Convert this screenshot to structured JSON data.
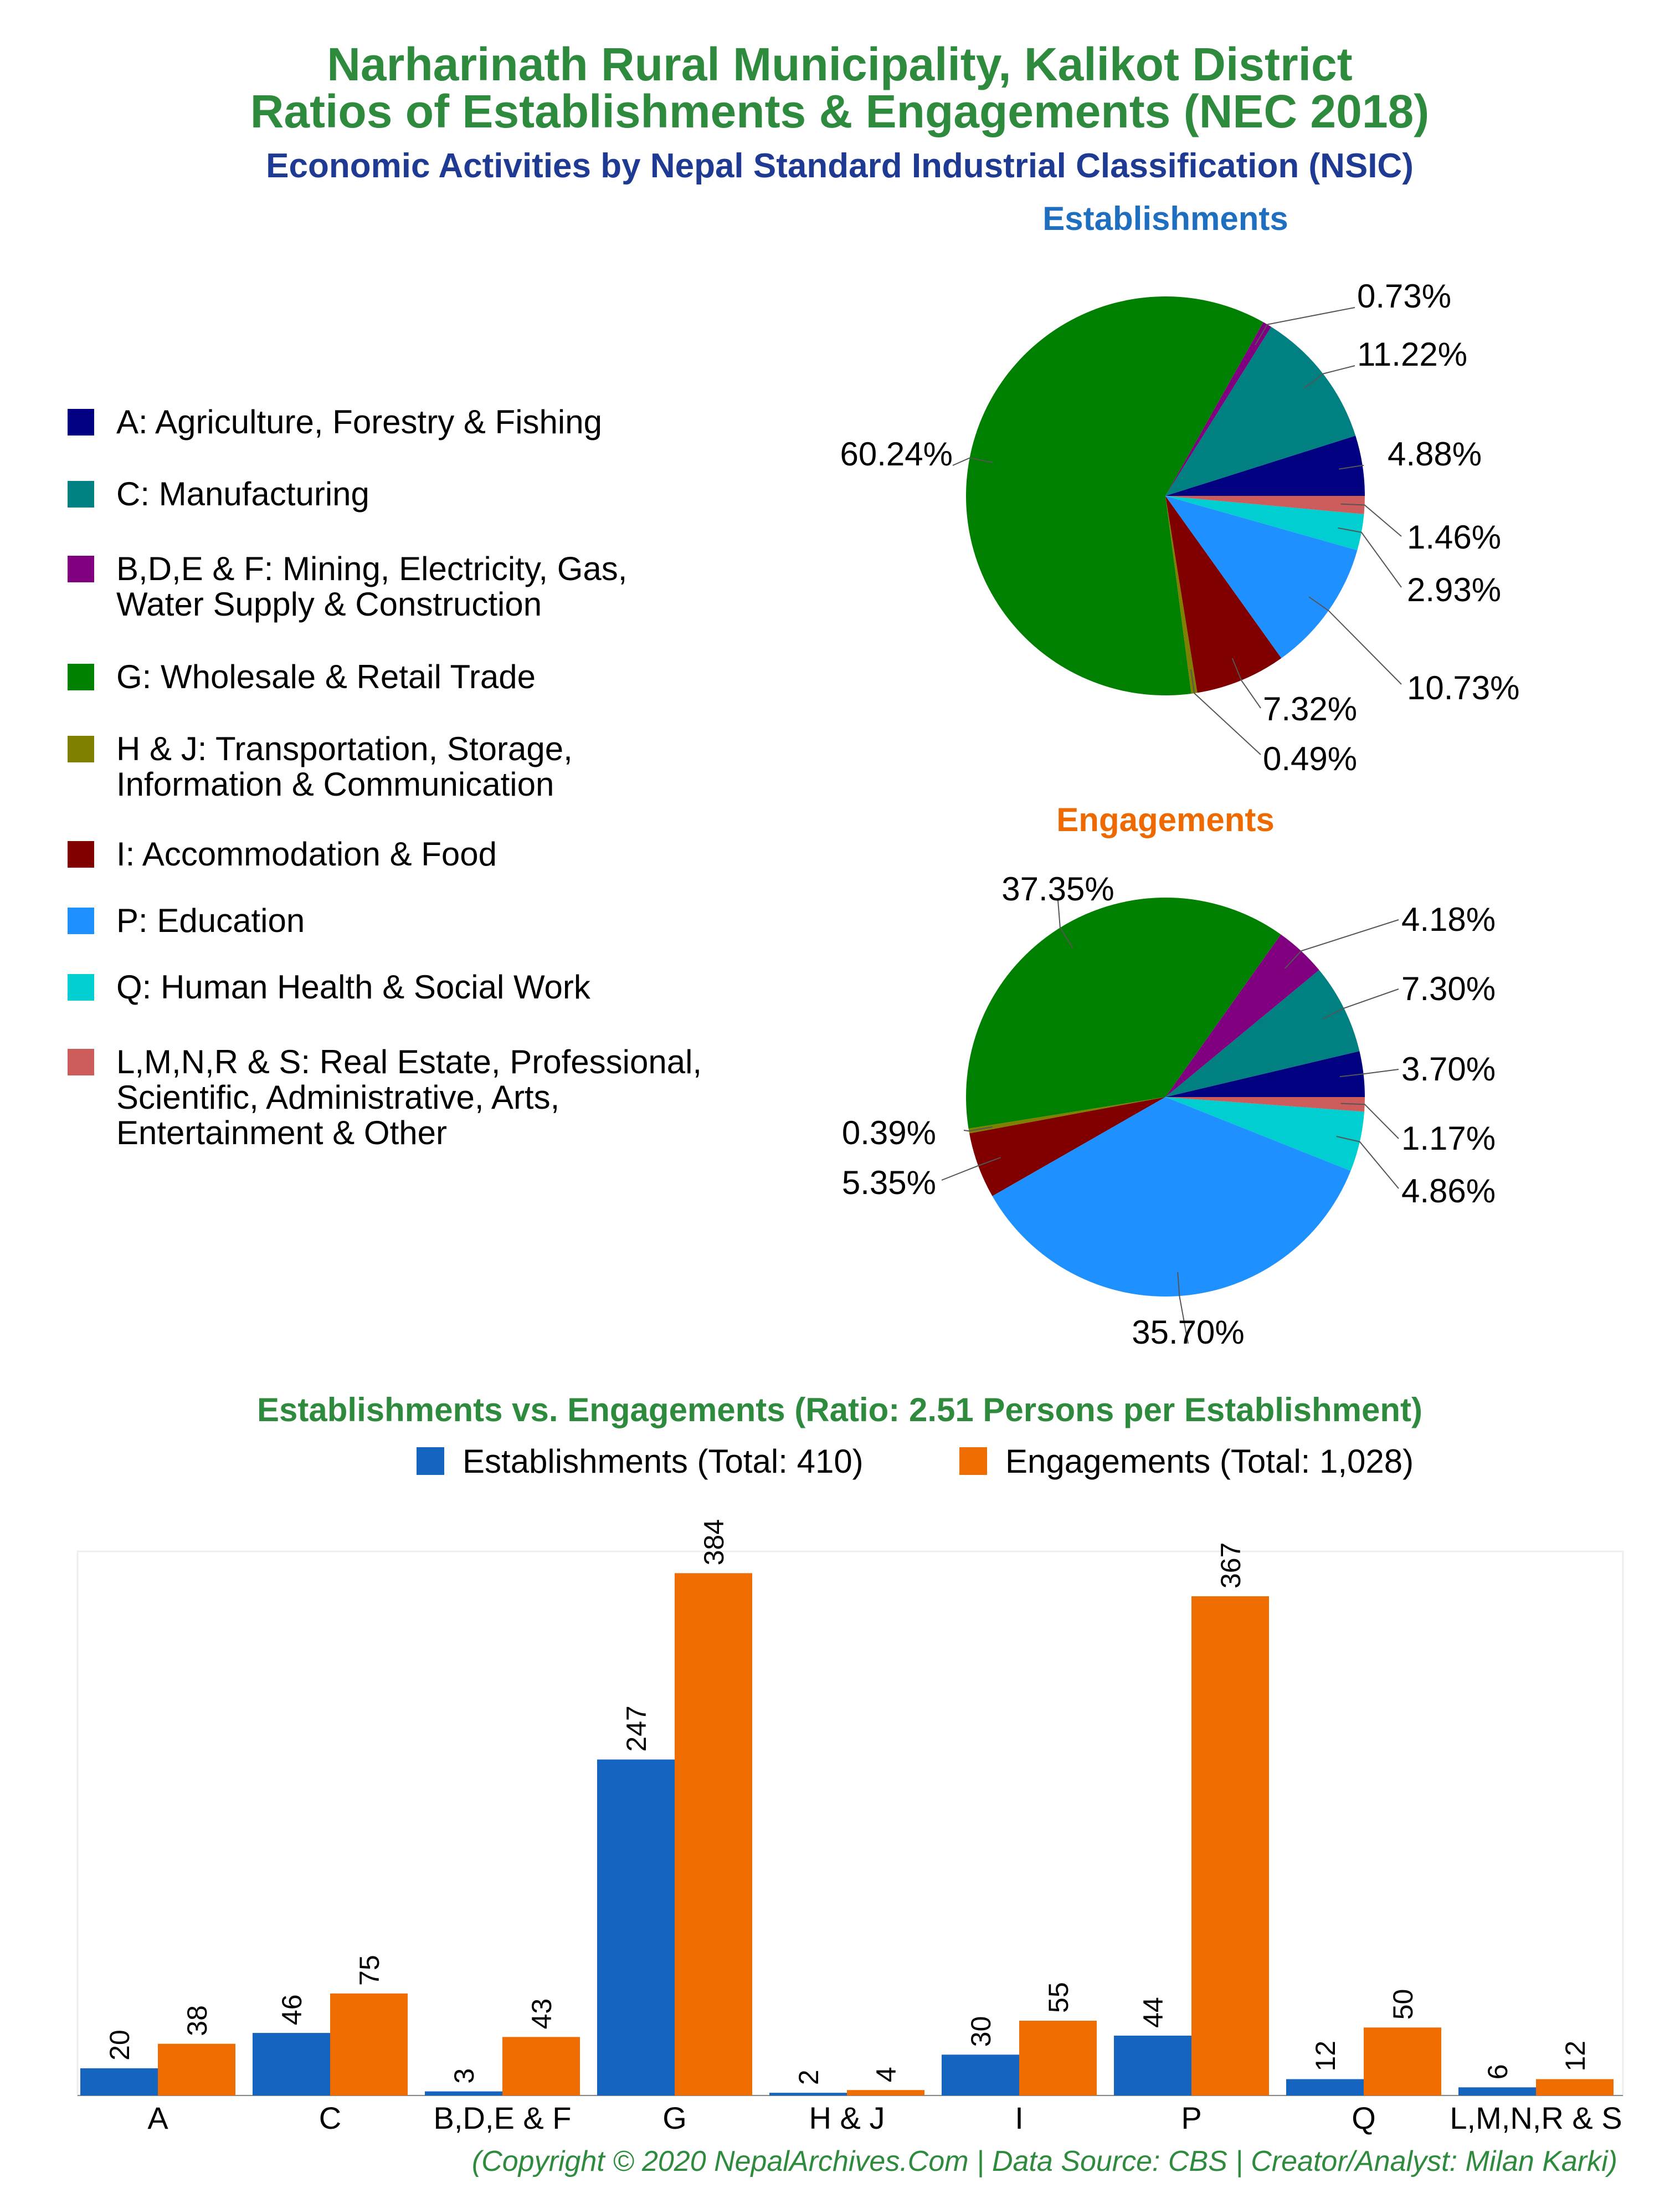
{
  "header": {
    "title_line1": "Narharinath Rural Municipality, Kalikot District",
    "title_line2": "Ratios of Establishments & Engagements (NEC 2018)",
    "subtitle": "Economic Activities by Nepal Standard Industrial Classification (NSIC)"
  },
  "colors": {
    "title_green": "#2e8b3e",
    "subtitle_blue": "#1f3a93",
    "establishments_title": "#1f6fc0",
    "engagements_title": "#ee6a00",
    "bar_establishments": "#1565c0",
    "bar_engagements": "#ef6c00",
    "footer_green": "#2e8b3e"
  },
  "legend": {
    "items": [
      {
        "label_lines": [
          "A: Agriculture, Forestry & Fishing"
        ],
        "color": "#000080"
      },
      {
        "label_lines": [
          "C: Manufacturing"
        ],
        "color": "#008080"
      },
      {
        "label_lines": [
          "B,D,E & F: Mining, Electricity, Gas,",
          "Water Supply & Construction"
        ],
        "color": "#800080"
      },
      {
        "label_lines": [
          "G: Wholesale & Retail Trade"
        ],
        "color": "#008000"
      },
      {
        "label_lines": [
          "H & J: Transportation, Storage,",
          "Information & Communication"
        ],
        "color": "#808000"
      },
      {
        "label_lines": [
          "I: Accommodation & Food"
        ],
        "color": "#800000"
      },
      {
        "label_lines": [
          "P: Education"
        ],
        "color": "#1e90ff"
      },
      {
        "label_lines": [
          "Q: Human Health & Social Work"
        ],
        "color": "#00ced1"
      },
      {
        "label_lines": [
          "L,M,N,R & S: Real Estate, Professional,",
          "Scientific, Administrative, Arts,",
          "Entertainment & Other"
        ],
        "color": "#cd5c5c"
      }
    ]
  },
  "chart_data": [
    {
      "type": "pie",
      "title": "Establishments",
      "categories": [
        "A",
        "C",
        "B,D,E & F",
        "G",
        "H & J",
        "I",
        "P",
        "Q",
        "L,M,N,R & S"
      ],
      "values": [
        20,
        46,
        3,
        247,
        2,
        30,
        44,
        12,
        6
      ],
      "labels": [
        "4.88%",
        "11.22%",
        "0.73%",
        "60.24%",
        "0.49%",
        "7.32%",
        "10.73%",
        "2.93%",
        "1.46%"
      ]
    },
    {
      "type": "pie",
      "title": "Engagements",
      "categories": [
        "A",
        "C",
        "B,D,E & F",
        "G",
        "H & J",
        "I",
        "P",
        "Q",
        "L,M,N,R & S"
      ],
      "values": [
        38,
        75,
        43,
        384,
        4,
        55,
        367,
        50,
        12
      ],
      "labels": [
        "3.70%",
        "7.30%",
        "4.18%",
        "37.35%",
        "0.39%",
        "5.35%",
        "35.70%",
        "4.86%",
        "1.17%"
      ]
    },
    {
      "type": "bar",
      "title": "Establishments vs. Engagements (Ratio: 2.51 Persons per Establishment)",
      "categories": [
        "A",
        "C",
        "B,D,E & F",
        "G",
        "H & J",
        "I",
        "P",
        "Q",
        "L,M,N,R & S"
      ],
      "series": [
        {
          "name": "Establishments (Total: 410)",
          "values": [
            20,
            46,
            3,
            247,
            2,
            30,
            44,
            12,
            6
          ]
        },
        {
          "name": "Engagements (Total: 1,028)",
          "values": [
            38,
            75,
            43,
            384,
            4,
            55,
            367,
            50,
            12
          ]
        }
      ],
      "ylim": [
        0,
        400
      ],
      "legend": "top-center"
    }
  ],
  "footer": "(Copyright © 2020 NepalArchives.Com | Data Source: CBS | Creator/Analyst: Milan Karki)"
}
